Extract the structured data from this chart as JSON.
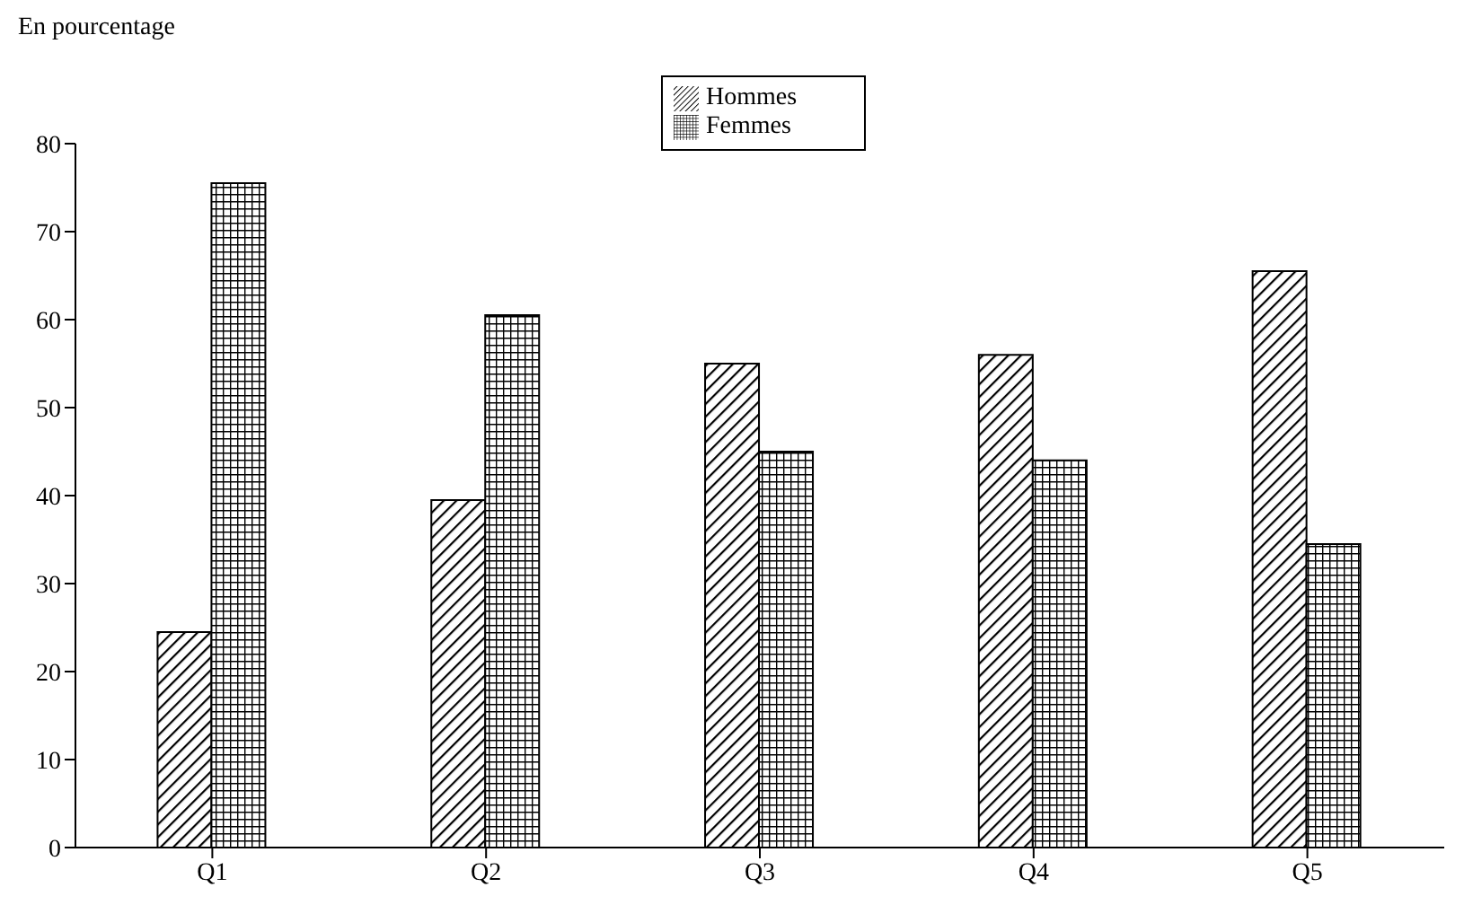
{
  "chart_data": {
    "type": "bar",
    "ylabel": "En pourcentage",
    "categories": [
      "Q1",
      "Q2",
      "Q3",
      "Q4",
      "Q5"
    ],
    "series": [
      {
        "name": "Hommes",
        "color": "#000000",
        "values": [
          24.5,
          39.5,
          55,
          56,
          65.5
        ]
      },
      {
        "name": "Femmes",
        "color": "#000000",
        "values": [
          75.5,
          60.5,
          45,
          44,
          34.5
        ]
      }
    ],
    "ylim": [
      0,
      80
    ],
    "yticks": [
      0,
      10,
      20,
      30,
      40,
      50,
      60,
      70,
      80
    ],
    "grid": false,
    "legend": "top"
  }
}
